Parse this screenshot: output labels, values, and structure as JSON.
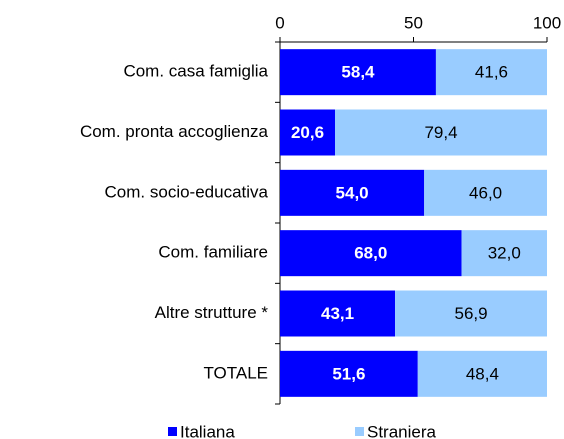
{
  "chart_data": {
    "type": "stacked-barh",
    "categories": [
      "Com. casa famiglia",
      "Com. pronta accoglienza",
      "Com. socio-educativa",
      "Com. familiare",
      "Altre strutture *",
      "TOTALE"
    ],
    "series": [
      {
        "name": "Italiana",
        "color": "#0000ff",
        "values": [
          58.4,
          20.6,
          54.0,
          68.0,
          43.1,
          51.6
        ],
        "value_labels": [
          "58,4",
          "20,6",
          "54,0",
          "68,0",
          "43,1",
          "51,6"
        ]
      },
      {
        "name": "Straniera",
        "color": "#99ccff",
        "values": [
          41.6,
          79.4,
          46.0,
          32.0,
          56.9,
          48.4
        ],
        "value_labels": [
          "41,6",
          "79,4",
          "46,0",
          "32,0",
          "56,9",
          "48,4"
        ]
      }
    ],
    "xlim": [
      0,
      100
    ],
    "xticks": [
      0,
      50,
      100
    ],
    "legend": "bottom"
  }
}
